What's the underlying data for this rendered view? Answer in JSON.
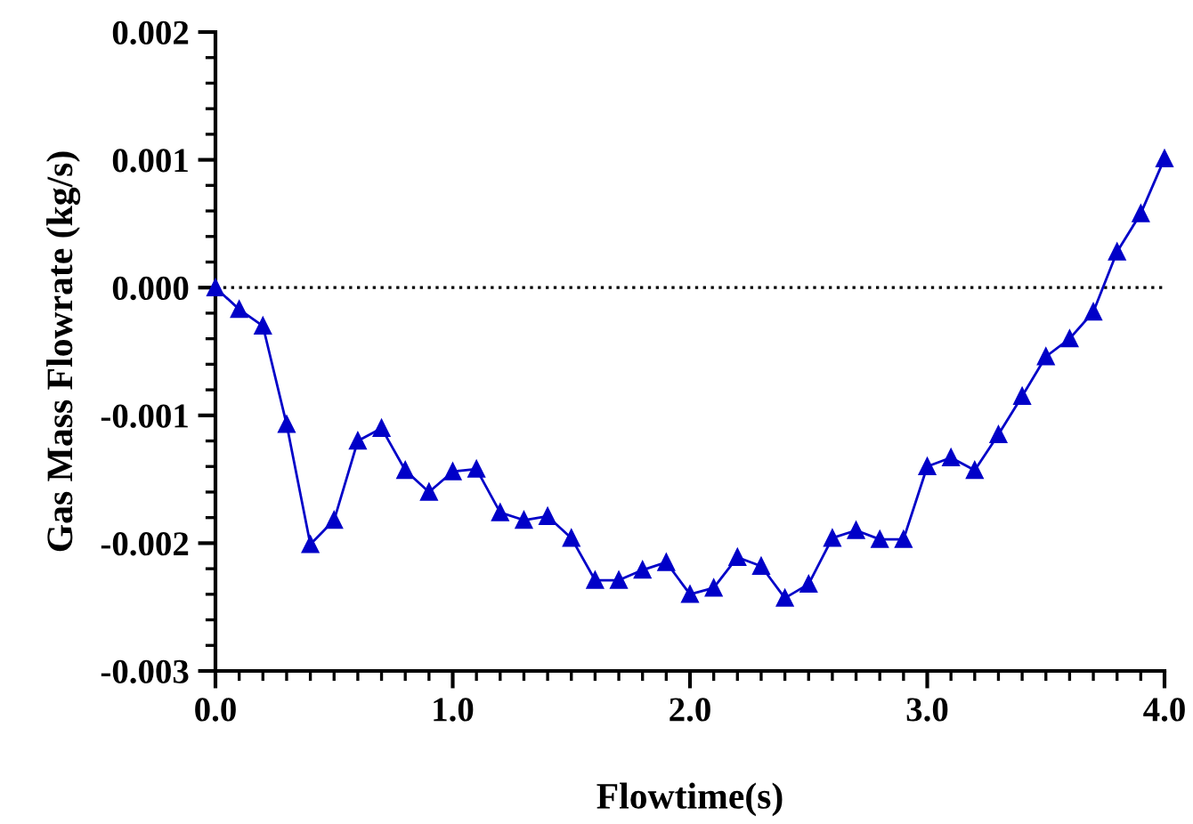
{
  "chart_data": {
    "type": "line",
    "xlabel": "Flowtime(s)",
    "ylabel": "Gas Mass Flowrate (kg/s)",
    "x": [
      0.0,
      0.1,
      0.2,
      0.3,
      0.4,
      0.5,
      0.6,
      0.7,
      0.8,
      0.9,
      1.0,
      1.1,
      1.2,
      1.3,
      1.4,
      1.5,
      1.6,
      1.7,
      1.8,
      1.9,
      2.0,
      2.1,
      2.2,
      2.3,
      2.4,
      2.5,
      2.6,
      2.7,
      2.8,
      2.9,
      3.0,
      3.1,
      3.2,
      3.3,
      3.4,
      3.5,
      3.6,
      3.7,
      3.8,
      3.9,
      4.0
    ],
    "series": [
      {
        "color": "#0000c8",
        "values": [
          0,
          -0.00017,
          -0.0003,
          -0.00107,
          -0.00201,
          -0.00182,
          -0.0012,
          -0.0011,
          -0.00143,
          -0.0016,
          -0.00144,
          -0.00142,
          -0.00176,
          -0.00182,
          -0.00179,
          -0.00196,
          -0.00229,
          -0.00229,
          -0.00221,
          -0.00215,
          -0.0024,
          -0.00235,
          -0.00211,
          -0.00218,
          -0.00243,
          -0.00232,
          -0.00196,
          -0.0019,
          -0.00197,
          -0.00197,
          -0.0014,
          -0.00133,
          -0.00143,
          -0.00115,
          -0.00085,
          -0.00054,
          -0.0004,
          -0.00019,
          0.00028,
          0.00058,
          0.00101
        ]
      }
    ],
    "marker": "triangle",
    "line_style": "solid",
    "grid": false,
    "legend": false,
    "xlim": [
      0,
      4
    ],
    "xticks": [
      {
        "value": 0,
        "label": "0.0"
      },
      {
        "value": 1,
        "label": "1.0"
      },
      {
        "value": 2,
        "label": "2.0"
      },
      {
        "value": 3,
        "label": "3.0"
      },
      {
        "value": 4,
        "label": "4.0"
      }
    ],
    "ylim": [
      -0.003,
      0.002
    ],
    "yticks": [
      {
        "value": -0.003,
        "label": "-0.003"
      },
      {
        "value": -0.002,
        "label": "-0.002"
      },
      {
        "value": -0.001,
        "label": "-0.001"
      },
      {
        "value": 0,
        "label": "0.000"
      },
      {
        "value": 0.001,
        "label": "0.001"
      },
      {
        "value": 0.002,
        "label": "0.002"
      }
    ],
    "ref_lines": [
      {
        "axis": "y",
        "value": 0,
        "color": "#000000",
        "line_style": "dotted"
      }
    ]
  }
}
